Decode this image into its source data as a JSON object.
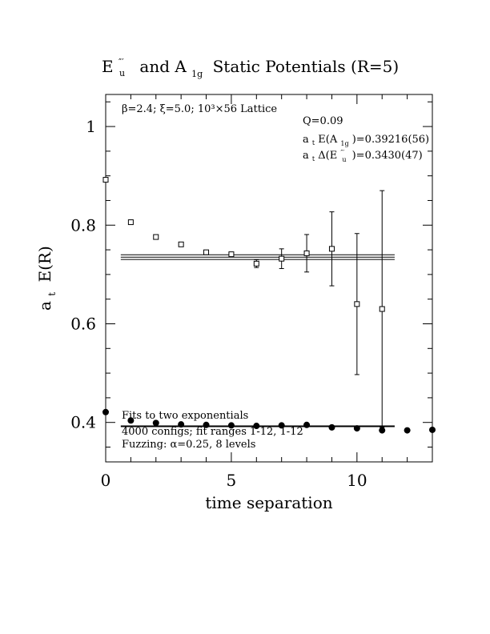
{
  "chart_data": {
    "type": "scatter",
    "title": "E″′ and A₁g Static Potentials (R=5)",
    "title_parts": {
      "sym1": "E",
      "sym1_sup": "″′",
      "sym1_sub": "u",
      "mid": "and A",
      "sym2_sub": "1g",
      "rest": "Static Potentials (R=5)"
    },
    "xlabel": "time separation",
    "ylabel": "a",
    "ylabel_sub": "t",
    "ylabel_rest": "E(R)",
    "xlim": [
      0,
      13
    ],
    "ylim": [
      0.32,
      1.065
    ],
    "x_ticks": [
      {
        "value": 0,
        "label": "0"
      },
      {
        "value": 5,
        "label": "5"
      },
      {
        "value": 10,
        "label": "10"
      }
    ],
    "y_ticks": [
      {
        "value": 0.4,
        "label": "0.4"
      },
      {
        "value": 0.6,
        "label": "0.6"
      },
      {
        "value": 0.8,
        "label": "0.8"
      },
      {
        "value": 1.0,
        "label": "1"
      }
    ],
    "annotations": {
      "lattice": "β=2.4; ξ=5.0; 10³×56 Lattice",
      "q": "Q=0.09",
      "a1g_prefix": "a",
      "a1g_sub1": "t",
      "a1g_mid": "E(A",
      "a1g_sub2": "1g",
      "a1g_val": ")=0.39216(56)",
      "eu_prefix": "a",
      "eu_sub1": "t",
      "eu_mid": "Δ(E",
      "eu_sup": "″′",
      "eu_sub2": "u",
      "eu_val": ")=0.3430(47)",
      "fits": "Fits to two exponentials",
      "configs": "4000 configs; fit ranges 1-12, 1-12",
      "fuzzing": "Fuzzing: α=0.25, 8 levels"
    },
    "series": [
      {
        "marker": "open-square",
        "points": [
          {
            "x": 0,
            "y": 0.892
          },
          {
            "x": 1,
            "y": 0.806
          },
          {
            "x": 2,
            "y": 0.776
          },
          {
            "x": 3,
            "y": 0.761
          },
          {
            "x": 4,
            "y": 0.745
          },
          {
            "x": 5,
            "y": 0.741
          },
          {
            "x": 6,
            "y": 0.722,
            "err": 0.008
          },
          {
            "x": 7,
            "y": 0.732,
            "err": 0.02
          },
          {
            "x": 8,
            "y": 0.743,
            "err": 0.038
          },
          {
            "x": 9,
            "y": 0.752,
            "err": 0.075
          },
          {
            "x": 10,
            "y": 0.64,
            "err": 0.143
          },
          {
            "x": 11,
            "y": 0.63,
            "err": 0.24
          }
        ],
        "fit": {
          "y": 0.7352,
          "err": 0.0047,
          "x_range": [
            0.6,
            11.5
          ]
        }
      },
      {
        "marker": "filled-circle",
        "points": [
          {
            "x": 0,
            "y": 0.421
          },
          {
            "x": 1,
            "y": 0.404
          },
          {
            "x": 2,
            "y": 0.399
          },
          {
            "x": 3,
            "y": 0.396
          },
          {
            "x": 4,
            "y": 0.395
          },
          {
            "x": 5,
            "y": 0.394
          },
          {
            "x": 6,
            "y": 0.393
          },
          {
            "x": 7,
            "y": 0.394
          },
          {
            "x": 8,
            "y": 0.395
          },
          {
            "x": 9,
            "y": 0.39
          },
          {
            "x": 10,
            "y": 0.388
          },
          {
            "x": 11,
            "y": 0.384
          },
          {
            "x": 12,
            "y": 0.384
          },
          {
            "x": 13,
            "y": 0.385
          }
        ],
        "fit": {
          "y": 0.39216,
          "err": 0.00056,
          "x_range": [
            0.6,
            11.5
          ]
        }
      }
    ]
  }
}
